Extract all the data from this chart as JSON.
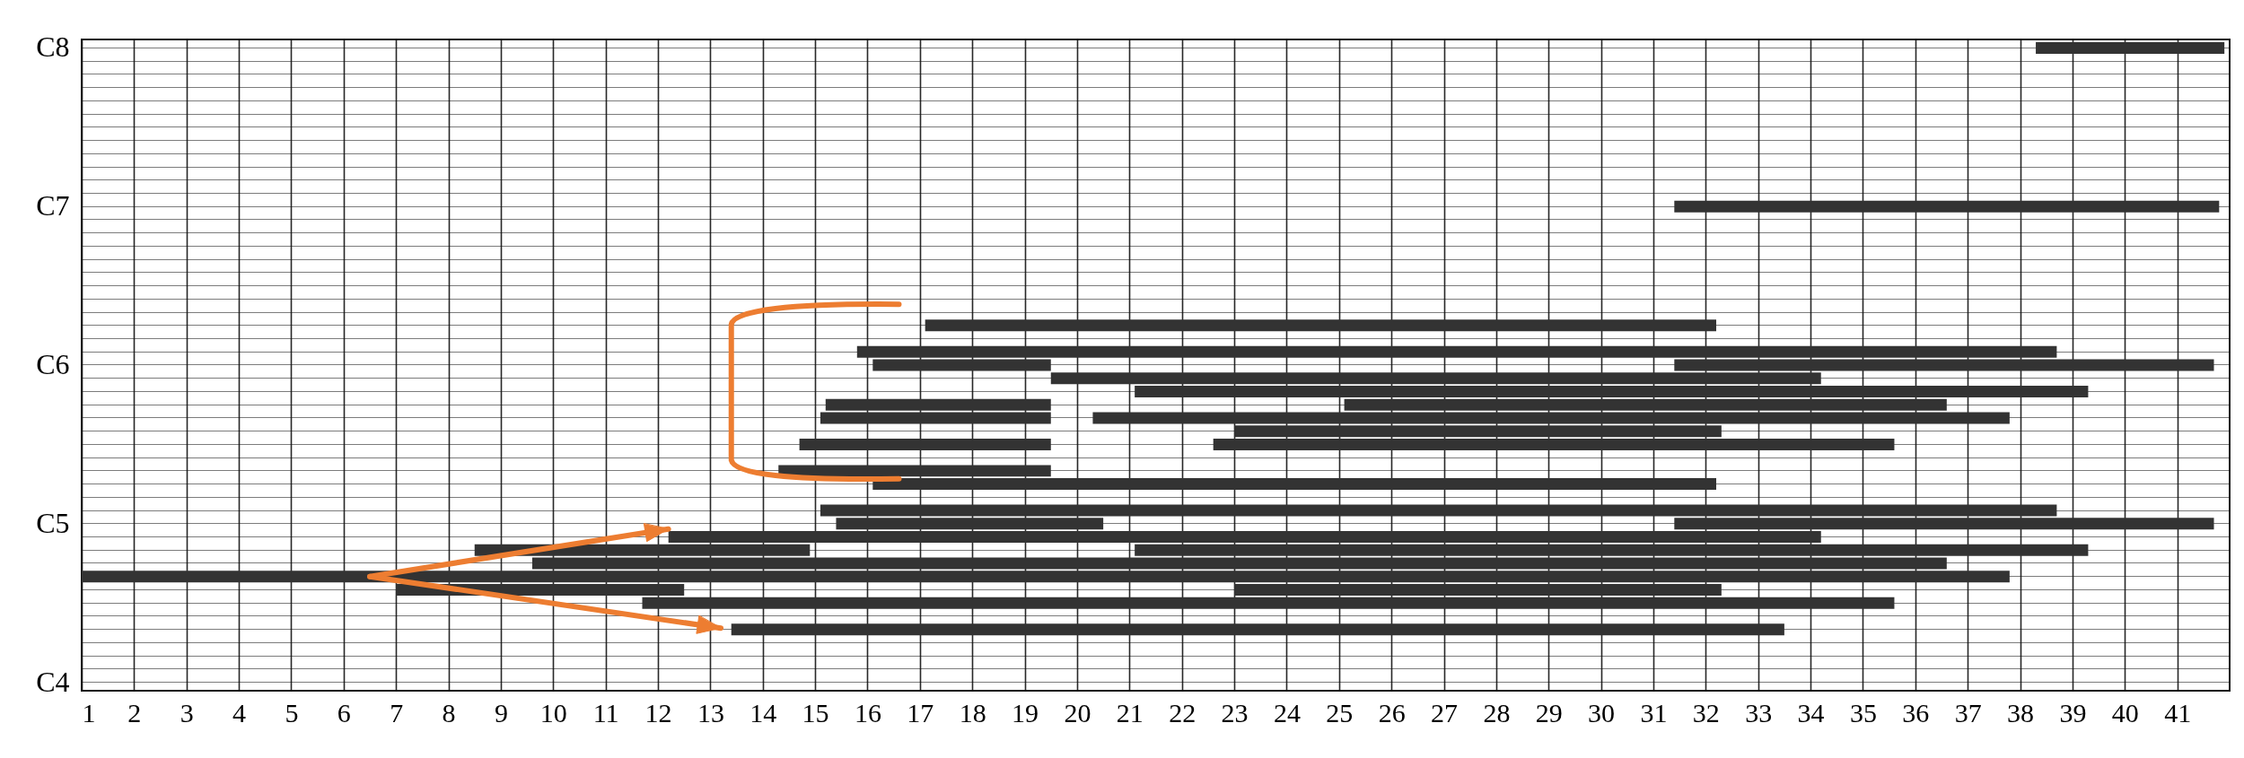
{
  "chart_data": {
    "type": "bar",
    "orientation": "horizontal",
    "xlim": [
      1,
      42
    ],
    "xticks": [
      1,
      2,
      3,
      4,
      5,
      6,
      7,
      8,
      9,
      10,
      11,
      12,
      13,
      14,
      15,
      16,
      17,
      18,
      19,
      20,
      21,
      22,
      23,
      24,
      25,
      26,
      27,
      28,
      29,
      30,
      31,
      32,
      33,
      34,
      35,
      36,
      37,
      38,
      39,
      40,
      41
    ],
    "categories": [
      "C8",
      null,
      null,
      null,
      null,
      null,
      null,
      null,
      null,
      null,
      null,
      null,
      "C7",
      null,
      null,
      null,
      null,
      null,
      null,
      null,
      null,
      null,
      null,
      null,
      "C6",
      null,
      null,
      null,
      null,
      null,
      null,
      null,
      null,
      null,
      null,
      null,
      "C5",
      null,
      null,
      null,
      null,
      null,
      null,
      null,
      null,
      null,
      null,
      null,
      "C4"
    ],
    "grid": true,
    "series": [
      {
        "color": "#333333",
        "base": [
          38.3,
          null,
          null,
          null,
          null,
          null,
          null,
          null,
          null,
          null,
          null,
          null,
          31.4,
          null,
          null,
          null,
          null,
          null,
          null,
          null,
          null,
          17.1,
          null,
          15.8,
          16.1,
          19.5,
          21.1,
          15.2,
          15.1,
          23.0,
          14.7,
          null,
          14.3,
          16.1,
          null,
          15.1,
          15.4,
          12.2,
          8.5,
          9.6,
          1.0,
          7.0,
          11.7,
          null,
          13.4,
          null,
          null,
          null,
          null
        ],
        "values": [
          3.6,
          null,
          null,
          null,
          null,
          null,
          null,
          null,
          null,
          null,
          null,
          null,
          10.4,
          null,
          null,
          null,
          null,
          null,
          null,
          null,
          null,
          15.1,
          null,
          22.9,
          3.4,
          14.7,
          18.2,
          4.3,
          4.4,
          9.3,
          4.8,
          null,
          5.2,
          16.1,
          null,
          23.6,
          5.1,
          22.0,
          6.4,
          27.0,
          36.8,
          5.5,
          23.9,
          null,
          20.1,
          null,
          null,
          null,
          null
        ]
      },
      {
        "color": "#333333",
        "base": [
          null,
          null,
          null,
          null,
          null,
          null,
          null,
          null,
          null,
          null,
          null,
          null,
          null,
          null,
          null,
          null,
          null,
          null,
          null,
          null,
          null,
          null,
          null,
          null,
          31.4,
          null,
          null,
          25.1,
          20.3,
          null,
          22.6,
          null,
          null,
          null,
          null,
          null,
          31.4,
          null,
          21.1,
          null,
          null,
          23.0,
          null,
          null,
          null,
          null,
          null,
          null,
          null
        ],
        "values": [
          null,
          null,
          null,
          null,
          null,
          null,
          null,
          null,
          null,
          null,
          null,
          null,
          null,
          null,
          null,
          null,
          null,
          null,
          null,
          null,
          null,
          null,
          null,
          null,
          10.3,
          null,
          null,
          11.5,
          17.5,
          null,
          13.0,
          null,
          null,
          null,
          null,
          null,
          10.3,
          null,
          18.2,
          null,
          null,
          9.3,
          null,
          null,
          null,
          null,
          null,
          null,
          null
        ]
      }
    ]
  }
}
